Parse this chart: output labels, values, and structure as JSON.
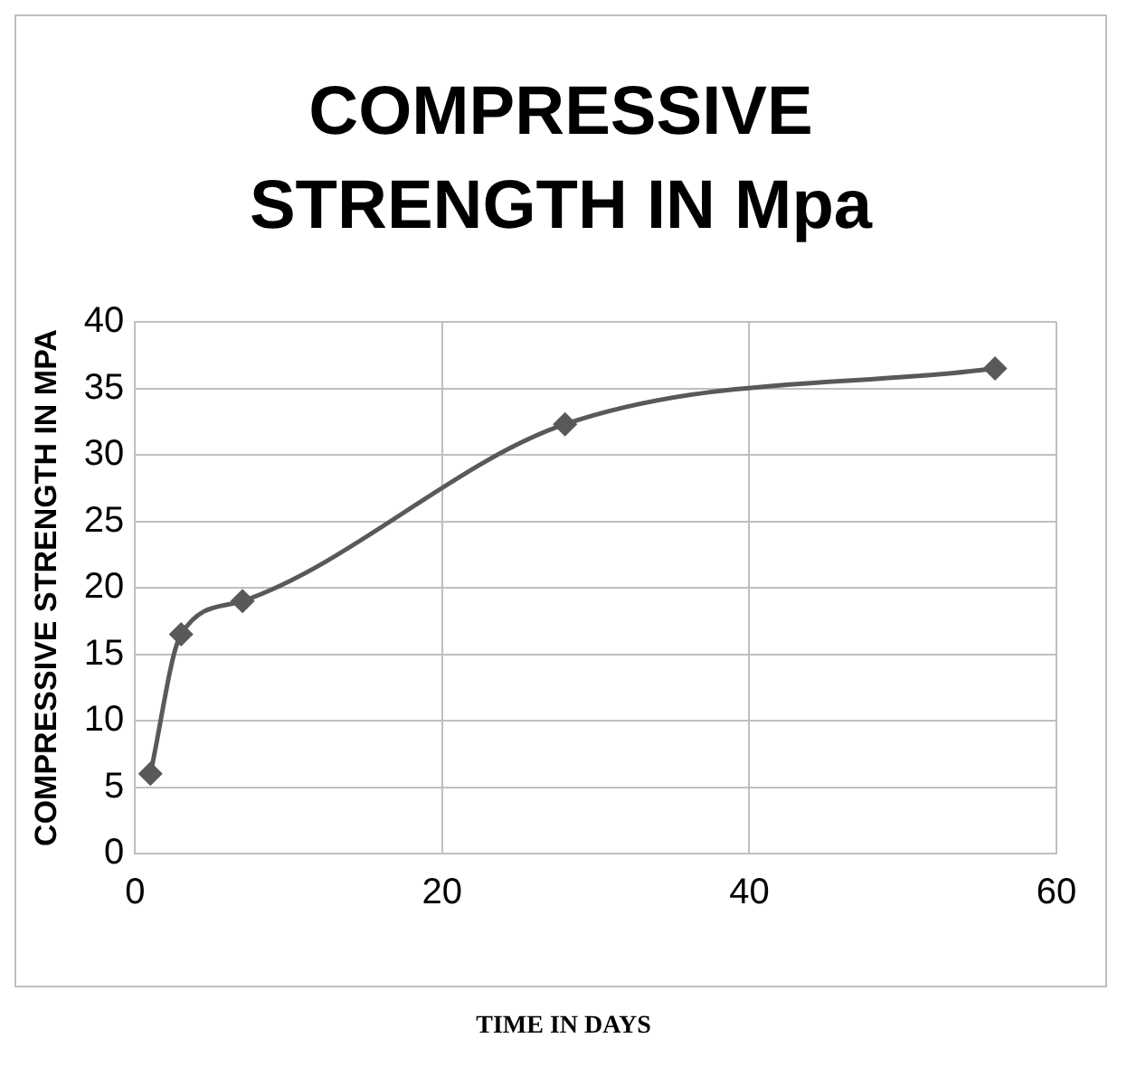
{
  "chart_data": {
    "type": "line",
    "title": "COMPRESSIVE STRENGTH IN Mpa",
    "xlabel": "TIME IN DAYS",
    "ylabel": "COMPRESSIVE STRENGTH IN MPA",
    "x": [
      1,
      3,
      7,
      28,
      56
    ],
    "series": [
      {
        "color": "#595959",
        "values": [
          6,
          16.5,
          19,
          32.3,
          36.5
        ]
      }
    ],
    "xlim": [
      0,
      60
    ],
    "xticks": [
      0,
      20,
      40,
      60
    ],
    "ylim": [
      0,
      40
    ],
    "yticks": [
      0,
      5,
      10,
      15,
      20,
      25,
      30,
      35,
      40
    ],
    "grid": true,
    "legend": false,
    "marker": "diamond",
    "line_style": "solid"
  }
}
